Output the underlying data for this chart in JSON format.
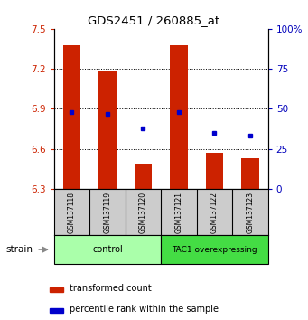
{
  "title": "GDS2451 / 260885_at",
  "samples": [
    "GSM137118",
    "GSM137119",
    "GSM137120",
    "GSM137121",
    "GSM137122",
    "GSM137123"
  ],
  "transformed_counts": [
    7.38,
    7.19,
    6.49,
    7.38,
    6.57,
    6.53
  ],
  "percentile_ranks": [
    48,
    47,
    38,
    48,
    35,
    33
  ],
  "ylim_left": [
    6.3,
    7.5
  ],
  "ylim_right": [
    0,
    100
  ],
  "yticks_left": [
    6.3,
    6.6,
    6.9,
    7.2,
    7.5
  ],
  "yticks_right": [
    0,
    25,
    50,
    75,
    100
  ],
  "ytick_labels_right": [
    "0",
    "25",
    "50",
    "75",
    "100%"
  ],
  "bar_color": "#CC2200",
  "dot_color": "#0000CC",
  "bar_width": 0.5,
  "left_tick_color": "#CC2200",
  "right_tick_color": "#0000BB",
  "legend_items": [
    "transformed count",
    "percentile rank within the sample"
  ],
  "control_color": "#AAFFAA",
  "tac1_color": "#44DD44",
  "sample_box_color": "#CCCCCC",
  "group_boundary": 2.5
}
